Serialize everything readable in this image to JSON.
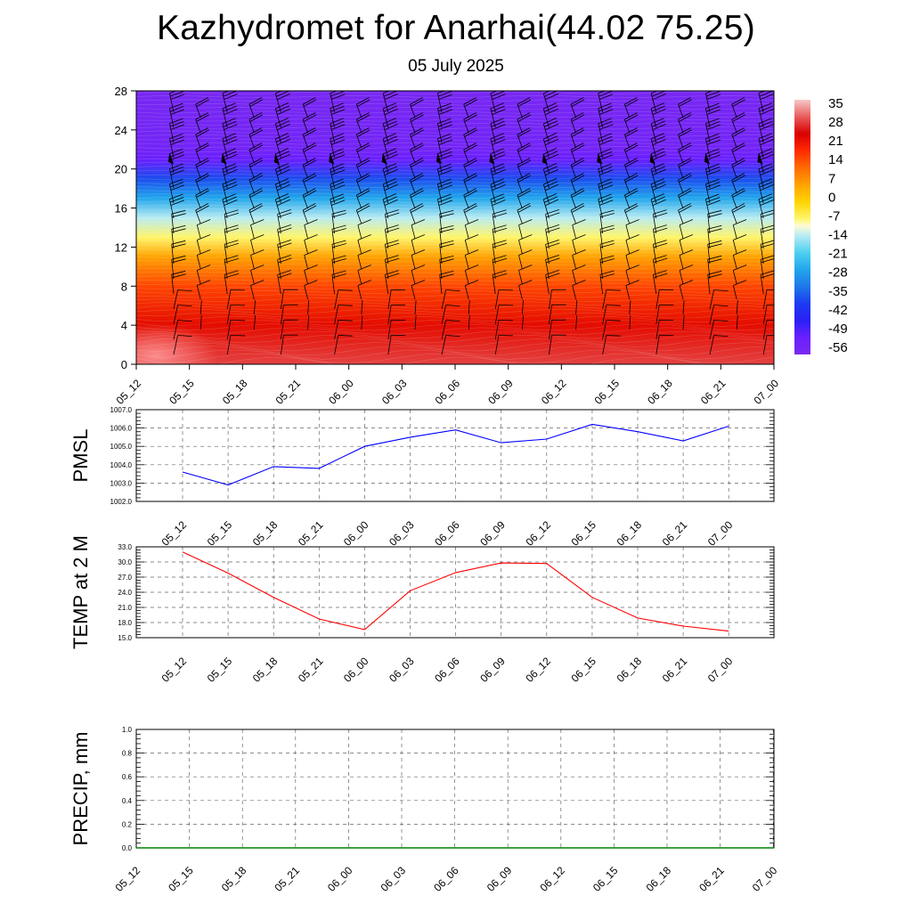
{
  "header": {
    "title": "Kazhydromet for Anarhai(44.02 75.25)",
    "subtitle": "05 July 2025"
  },
  "chart_data": [
    {
      "type": "heatmap",
      "name": "cross-section",
      "x_ticks": [
        "05_12",
        "05_15",
        "05_18",
        "05_21",
        "06_00",
        "06_03",
        "06_06",
        "06_09",
        "06_12",
        "06_15",
        "06_18",
        "06_21",
        "07_00"
      ],
      "y_ticks": [
        0,
        4,
        8,
        12,
        16,
        20,
        24,
        28
      ],
      "ylim": [
        0,
        28
      ],
      "colorbar_labels": [
        35,
        28,
        21,
        14,
        7,
        0,
        -7,
        -14,
        -21,
        -28,
        -35,
        -42,
        -49,
        -56
      ],
      "colorbar_range": [
        -63,
        42
      ],
      "temperature_profile": [
        [
          0,
          33
        ],
        [
          4,
          26
        ],
        [
          8,
          18
        ],
        [
          11,
          7
        ],
        [
          13,
          -7
        ],
        [
          15,
          -14
        ],
        [
          17,
          -28
        ],
        [
          19,
          -40
        ],
        [
          21,
          -56
        ],
        [
          22,
          -60
        ],
        [
          28,
          -62
        ]
      ]
    },
    {
      "type": "line",
      "name": "pmsl",
      "ylabel": "PMSL",
      "x": [
        "05_12",
        "05_15",
        "05_18",
        "05_21",
        "06_00",
        "06_03",
        "06_06",
        "06_09",
        "06_12",
        "06_15",
        "06_18",
        "06_21",
        "07_00"
      ],
      "y": [
        1003.6,
        1002.9,
        1003.9,
        1003.8,
        1005.0,
        1005.5,
        1005.9,
        1005.2,
        1005.4,
        1006.2,
        1005.8,
        1005.3,
        1006.1
      ],
      "ylim": [
        1002.0,
        1007.0
      ],
      "y_ticks": [
        "1002.0",
        "1003.0",
        "1004.0",
        "1005.0",
        "1006.0",
        "1007.0"
      ],
      "color": "#0000ff"
    },
    {
      "type": "line",
      "name": "temp2m",
      "ylabel": "TEMP at 2 M",
      "x": [
        "05_12",
        "05_15",
        "05_18",
        "05_21",
        "06_00",
        "06_03",
        "06_06",
        "06_09",
        "06_12",
        "06_15",
        "06_18",
        "06_21",
        "07_00"
      ],
      "y": [
        32.0,
        27.8,
        23.0,
        18.7,
        16.6,
        24.3,
        27.9,
        29.8,
        29.7,
        23.0,
        18.9,
        17.3,
        16.3
      ],
      "ylim": [
        15.0,
        33.0
      ],
      "y_ticks": [
        "15.0",
        "18.0",
        "21.0",
        "24.0",
        "27.0",
        "30.0",
        "33.0"
      ],
      "color": "#ff0000"
    },
    {
      "type": "line",
      "name": "precip",
      "ylabel": "PRECIP, mm",
      "x": [
        "05_12",
        "05_15",
        "05_18",
        "05_21",
        "06_00",
        "06_03",
        "06_06",
        "06_09",
        "06_12",
        "06_15",
        "06_18",
        "06_21",
        "07_00"
      ],
      "y": [
        0,
        0,
        0,
        0,
        0,
        0,
        0,
        0,
        0,
        0,
        0,
        0,
        0
      ],
      "ylim": [
        0.0,
        1.0
      ],
      "y_ticks": [
        "0.0",
        "0.2",
        "0.4",
        "0.6",
        "0.8",
        "1.0"
      ],
      "color": "#008000"
    }
  ]
}
